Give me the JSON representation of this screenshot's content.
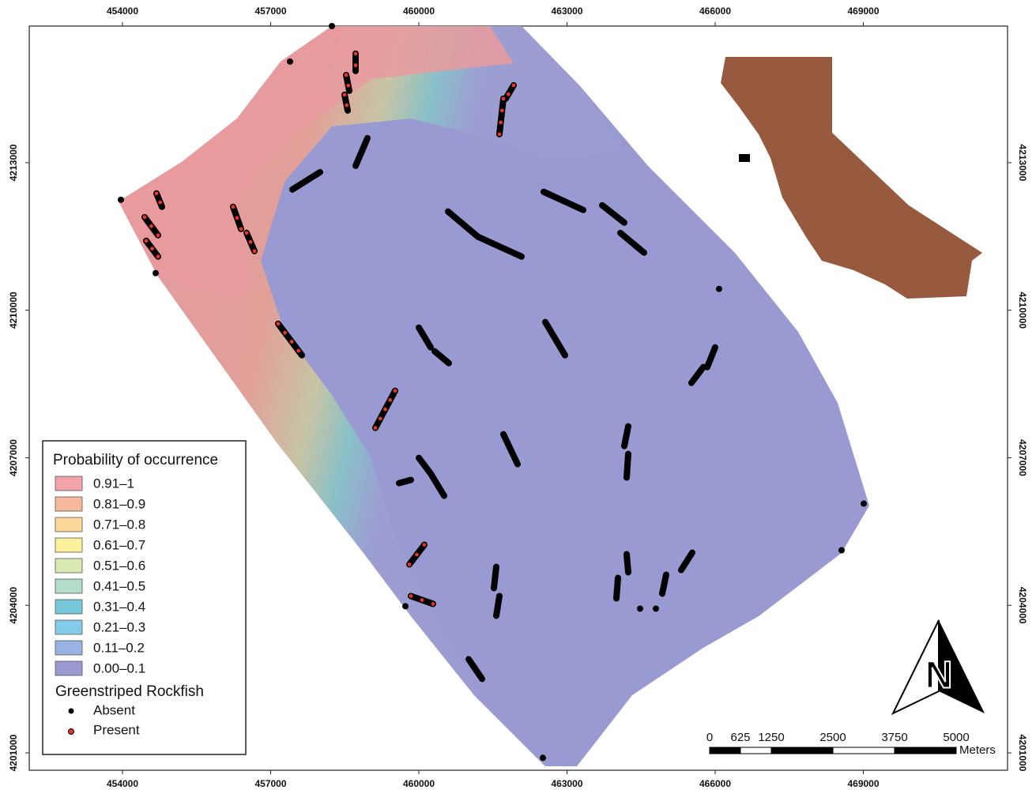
{
  "map": {
    "xlim": [
      452112,
      471920
    ],
    "ylim": [
      4200647,
      4215777
    ],
    "xticks": [
      454000,
      457000,
      460000,
      463000,
      466000,
      469000
    ],
    "yticks": [
      4201000,
      4204000,
      4207000,
      4210000,
      4213000
    ],
    "legend": {
      "title": "Probability of occurrence",
      "classes": [
        {
          "label": "0.91–1",
          "color": "#f2a3aa"
        },
        {
          "label": "0.81–0.9",
          "color": "#f6b99c"
        },
        {
          "label": "0.71–0.8",
          "color": "#fcd99a"
        },
        {
          "label": "0.61–0.7",
          "color": "#fbf29b"
        },
        {
          "label": "0.51–0.6",
          "color": "#d9e9b2"
        },
        {
          "label": "0.41–0.5",
          "color": "#b1ddca"
        },
        {
          "label": "0.31–0.4",
          "color": "#74c8d8"
        },
        {
          "label": "0.21–0.3",
          "color": "#84caea"
        },
        {
          "label": "0.11–0.2",
          "color": "#98b3e2"
        },
        {
          "label": "0.00–0.1",
          "color": "#9a9ad2"
        }
      ],
      "species": "Greenstriped Rockfish",
      "absent": "Absent",
      "present": "Present"
    },
    "transects": [
      {
        "start": [
          458720,
          4215216
        ],
        "end": [
          458720,
          4214862
        ],
        "present": true
      },
      {
        "start": [
          458528,
          4214782
        ],
        "end": [
          458592,
          4214461
        ],
        "present": true
      },
      {
        "start": [
          458496,
          4214381
        ],
        "end": [
          458560,
          4214060
        ],
        "present": true
      },
      {
        "start": [
          461920,
          4214574
        ],
        "end": [
          461760,
          4214301
        ],
        "present": true
      },
      {
        "start": [
          461712,
          4214301
        ],
        "end": [
          461632,
          4213578
        ],
        "present": true
      },
      {
        "start": [
          458960,
          4213498
        ],
        "end": [
          458720,
          4212936
        ],
        "present": false
      },
      {
        "start": [
          458000,
          4212808
        ],
        "end": [
          457440,
          4212455
        ],
        "present": false
      },
      {
        "start": [
          454688,
          4212375
        ],
        "end": [
          454800,
          4212102
        ],
        "present": true
      },
      {
        "start": [
          454448,
          4211893
        ],
        "end": [
          454720,
          4211524
        ],
        "present": true
      },
      {
        "start": [
          454480,
          4211412
        ],
        "end": [
          454720,
          4211091
        ],
        "present": true
      },
      {
        "start": [
          456240,
          4212102
        ],
        "end": [
          456400,
          4211652
        ],
        "present": true
      },
      {
        "start": [
          456512,
          4211572
        ],
        "end": [
          456672,
          4211203
        ],
        "present": true
      },
      {
        "start": [
          460592,
          4212006
        ],
        "end": [
          461200,
          4211492
        ],
        "present": false
      },
      {
        "start": [
          461200,
          4211492
        ],
        "end": [
          462080,
          4211091
        ],
        "present": false
      },
      {
        "start": [
          462528,
          4212407
        ],
        "end": [
          463328,
          4212038
        ],
        "present": false
      },
      {
        "start": [
          463712,
          4212134
        ],
        "end": [
          464160,
          4211781
        ],
        "present": false
      },
      {
        "start": [
          464080,
          4211572
        ],
        "end": [
          464560,
          4211171
        ],
        "present": false
      },
      {
        "start": [
          457152,
          4209726
        ],
        "end": [
          457632,
          4209084
        ],
        "present": true
      },
      {
        "start": [
          460000,
          4209646
        ],
        "end": [
          460240,
          4209245
        ],
        "present": false
      },
      {
        "start": [
          460320,
          4209165
        ],
        "end": [
          460608,
          4208924
        ],
        "present": false
      },
      {
        "start": [
          462560,
          4209759
        ],
        "end": [
          462960,
          4209084
        ],
        "present": false
      },
      {
        "start": [
          465520,
          4208523
        ],
        "end": [
          465760,
          4208844
        ],
        "present": false
      },
      {
        "start": [
          465840,
          4208844
        ],
        "end": [
          466000,
          4209245
        ],
        "present": false
      },
      {
        "start": [
          459520,
          4208362
        ],
        "end": [
          459120,
          4207608
        ],
        "present": true
      },
      {
        "start": [
          461712,
          4207479
        ],
        "end": [
          462000,
          4206870
        ],
        "present": false
      },
      {
        "start": [
          464240,
          4207640
        ],
        "end": [
          464160,
          4207239
        ],
        "present": false
      },
      {
        "start": [
          464240,
          4207078
        ],
        "end": [
          464208,
          4206597
        ],
        "present": false
      },
      {
        "start": [
          460000,
          4206998
        ],
        "end": [
          460240,
          4206677
        ],
        "present": false
      },
      {
        "start": [
          460240,
          4206677
        ],
        "end": [
          460512,
          4206228
        ],
        "present": false
      },
      {
        "start": [
          459600,
          4206484
        ],
        "end": [
          459840,
          4206549
        ],
        "present": false
      },
      {
        "start": [
          460112,
          4205232
        ],
        "end": [
          459808,
          4204831
        ],
        "present": true
      },
      {
        "start": [
          459840,
          4204189
        ],
        "end": [
          460288,
          4204029
        ],
        "present": true
      },
      {
        "start": [
          461568,
          4204783
        ],
        "end": [
          461520,
          4204350
        ],
        "present": false
      },
      {
        "start": [
          461632,
          4204189
        ],
        "end": [
          461568,
          4203788
        ],
        "present": false
      },
      {
        "start": [
          464208,
          4205040
        ],
        "end": [
          464240,
          4204671
        ],
        "present": false
      },
      {
        "start": [
          464032,
          4204558
        ],
        "end": [
          464000,
          4204141
        ],
        "present": false
      },
      {
        "start": [
          465536,
          4205072
        ],
        "end": [
          465312,
          4204719
        ],
        "present": false
      },
      {
        "start": [
          465008,
          4204623
        ],
        "end": [
          464928,
          4204237
        ],
        "present": false
      },
      {
        "start": [
          461008,
          4202905
        ],
        "end": [
          461280,
          4202504
        ],
        "present": false
      }
    ],
    "points": [
      [
        458240,
        4215777
      ],
      [
        457392,
        4215055
      ],
      [
        453968,
        4212246
      ],
      [
        454672,
        4210754
      ],
      [
        466080,
        4210433
      ],
      [
        469008,
        4206067
      ],
      [
        468560,
        4205120
      ],
      [
        459728,
        4203981
      ],
      [
        464480,
        4203932
      ],
      [
        464800,
        4203932
      ],
      [
        462512,
        4200899
      ]
    ],
    "scale": {
      "values": [
        0,
        625,
        1250,
        2500,
        3750,
        5000
      ],
      "unit": "Meters"
    },
    "north": "N"
  }
}
